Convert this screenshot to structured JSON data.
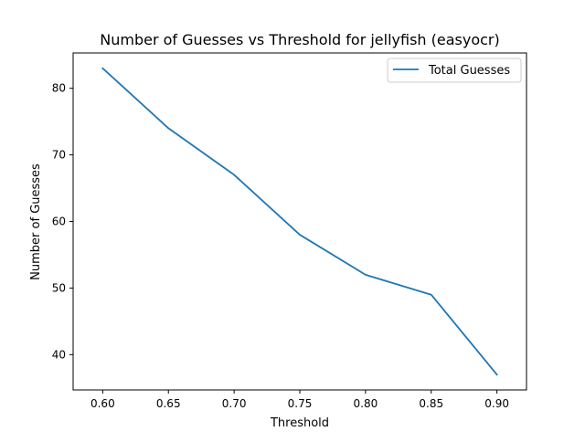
{
  "chart_data": {
    "type": "line",
    "title": "Number of Guesses vs Threshold for jellyfish (easyocr)",
    "xlabel": "Threshold",
    "ylabel": "Number of Guesses",
    "x": [
      0.6,
      0.65,
      0.7,
      0.75,
      0.8,
      0.85,
      0.9
    ],
    "series": [
      {
        "name": "Total Guesses",
        "color": "#1f77b4",
        "values": [
          83,
          74,
          67,
          58,
          52,
          49,
          37
        ]
      }
    ],
    "xlim": [
      0.5775,
      0.9225
    ],
    "ylim": [
      34.7,
      85.3
    ],
    "x_ticks": [
      {
        "value": 0.6,
        "label": "0.60"
      },
      {
        "value": 0.65,
        "label": "0.65"
      },
      {
        "value": 0.7,
        "label": "0.70"
      },
      {
        "value": 0.75,
        "label": "0.75"
      },
      {
        "value": 0.8,
        "label": "0.80"
      },
      {
        "value": 0.85,
        "label": "0.85"
      },
      {
        "value": 0.9,
        "label": "0.90"
      }
    ],
    "y_ticks": [
      {
        "value": 40,
        "label": "40"
      },
      {
        "value": 50,
        "label": "50"
      },
      {
        "value": 60,
        "label": "60"
      },
      {
        "value": 70,
        "label": "70"
      },
      {
        "value": 80,
        "label": "80"
      }
    ],
    "grid": false,
    "legend_position": "top-right"
  }
}
